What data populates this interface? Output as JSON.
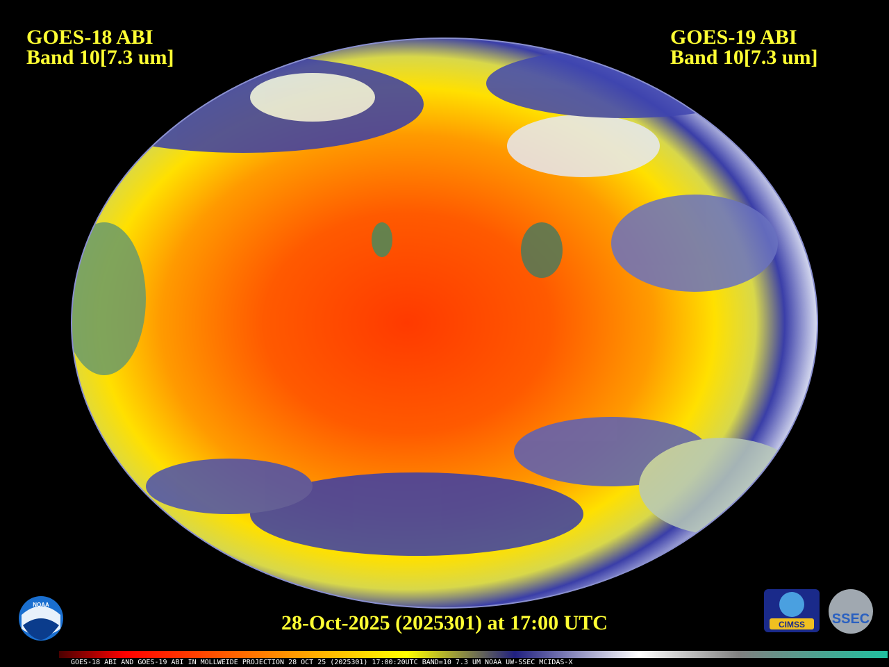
{
  "left_label": {
    "satellite": "GOES-18 ABI",
    "band": "Band 10[7.3 um]"
  },
  "right_label": {
    "satellite": "GOES-19 ABI",
    "band": "Band 10[7.3 um]"
  },
  "timestamp": "28-Oct-2025 (2025301) at 17:00 UTC",
  "colorbar_caption": "GOES-18 ABI AND GOES-19 ABI IN MOLLWEIDE PROJECTION 28 OCT 25 (2025301) 17:00:20UTC BAND=10 7.3 UM NOAA UW-SSEC MCIDAS-X",
  "logos": {
    "noaa": "NOAA",
    "cimss": "CIMSS",
    "ssec": "SSEC"
  }
}
